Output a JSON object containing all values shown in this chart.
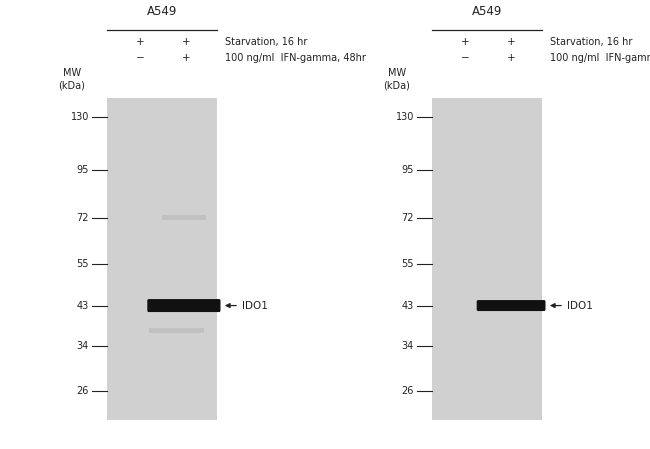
{
  "panels": [
    {
      "title": "A549",
      "band_label": "IDO1",
      "has_faint_72": true,
      "has_faint_34": true
    },
    {
      "title": "A549",
      "band_label": "IDO1",
      "has_faint_72": false,
      "has_faint_34": false
    }
  ],
  "mw_marks": [
    130,
    95,
    72,
    55,
    43,
    34,
    26
  ],
  "bg_color": "#ffffff",
  "gel_color": "#d0d0d0",
  "band_color": "#111111",
  "faint_color": "#b0b0b0",
  "text_color": "#222222",
  "title_fontsize": 8.5,
  "label_fontsize": 7.5,
  "mw_fontsize": 7.0,
  "condition_label1": "Starvation, 16 hr",
  "condition_label2": "100 ng/ml  IFN-gamma, 48hr"
}
